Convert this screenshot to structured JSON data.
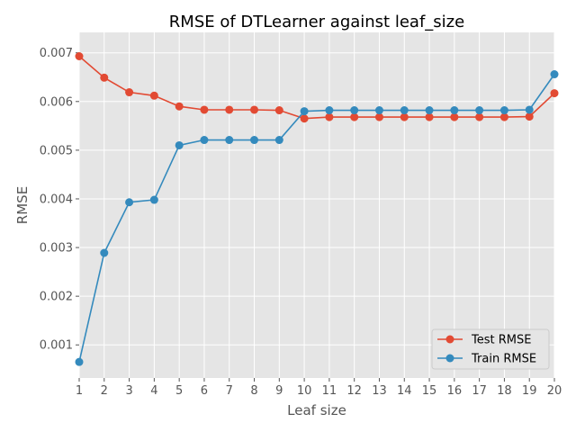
{
  "chart_data": {
    "type": "line",
    "title": "RMSE of DTLearner against leaf_size",
    "xlabel": "Leaf size",
    "ylabel": "RMSE",
    "x": [
      1,
      2,
      3,
      4,
      5,
      6,
      7,
      8,
      9,
      10,
      11,
      12,
      13,
      14,
      15,
      16,
      17,
      18,
      19,
      20
    ],
    "xlim": [
      1,
      20
    ],
    "ylim": [
      0.00032,
      0.00742
    ],
    "xticks": [
      "1",
      "2",
      "3",
      "4",
      "5",
      "6",
      "7",
      "8",
      "9",
      "10",
      "11",
      "12",
      "13",
      "14",
      "15",
      "16",
      "17",
      "18",
      "19",
      "20"
    ],
    "yticks": [
      {
        "value": 0.001,
        "label": "0.001"
      },
      {
        "value": 0.002,
        "label": "0.002"
      },
      {
        "value": 0.003,
        "label": "0.003"
      },
      {
        "value": 0.004,
        "label": "0.004"
      },
      {
        "value": 0.005,
        "label": "0.005"
      },
      {
        "value": 0.006,
        "label": "0.006"
      },
      {
        "value": 0.007,
        "label": "0.007"
      }
    ],
    "grid": true,
    "legend_position": "lower-right",
    "series": [
      {
        "name": "Test RMSE",
        "color": "#E24A33",
        "values": [
          0.00693,
          0.00649,
          0.00619,
          0.00612,
          0.0059,
          0.00583,
          0.00583,
          0.00583,
          0.00582,
          0.00565,
          0.00568,
          0.00568,
          0.00568,
          0.00568,
          0.00568,
          0.00568,
          0.00568,
          0.00568,
          0.00569,
          0.00617
        ]
      },
      {
        "name": "Train RMSE",
        "color": "#348ABD",
        "values": [
          0.00065,
          0.00289,
          0.00393,
          0.00398,
          0.0051,
          0.00521,
          0.00521,
          0.00521,
          0.00521,
          0.0058,
          0.00582,
          0.00582,
          0.00582,
          0.00582,
          0.00582,
          0.00582,
          0.00582,
          0.00582,
          0.00583,
          0.00656
        ]
      }
    ]
  }
}
